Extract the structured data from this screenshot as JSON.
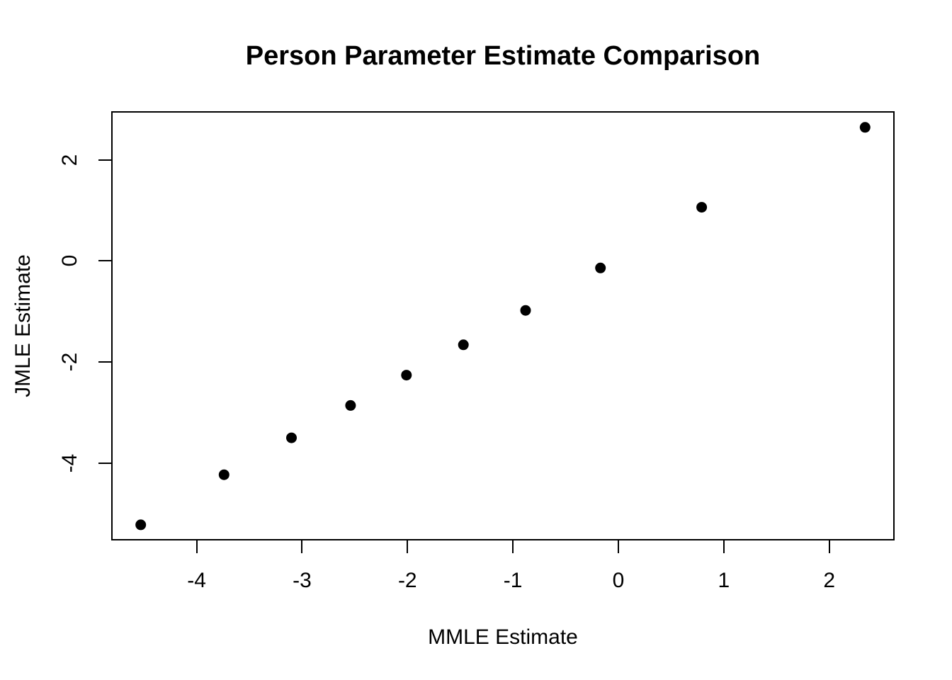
{
  "chart_data": {
    "type": "scatter",
    "title": "Person Parameter Estimate Comparison",
    "xlabel": "MMLE Estimate",
    "ylabel": "JMLE Estimate",
    "marker": "filled-circle",
    "point_color": "#000000",
    "grid": false,
    "legend": null,
    "xlim": [
      -4.81,
      2.62
    ],
    "ylim": [
      -5.53,
      2.96
    ],
    "x_ticks": [
      "-4",
      "-3",
      "-2",
      "-1",
      "0",
      "1",
      "2"
    ],
    "x_tick_values": [
      -4,
      -3,
      -2,
      -1,
      0,
      1,
      2
    ],
    "y_ticks": [
      "2",
      "0",
      "-2",
      "-4"
    ],
    "y_tick_values": [
      2,
      0,
      -2,
      -4
    ],
    "points": [
      {
        "mmle": -4.53,
        "jmle": -5.22
      },
      {
        "mmle": -3.74,
        "jmle": -4.23
      },
      {
        "mmle": -3.1,
        "jmle": -3.5
      },
      {
        "mmle": -2.54,
        "jmle": -2.86
      },
      {
        "mmle": -2.01,
        "jmle": -2.26
      },
      {
        "mmle": -1.47,
        "jmle": -1.66
      },
      {
        "mmle": -0.88,
        "jmle": -0.98
      },
      {
        "mmle": -0.17,
        "jmle": -0.14
      },
      {
        "mmle": 0.79,
        "jmle": 1.06
      },
      {
        "mmle": 2.34,
        "jmle": 2.64
      }
    ]
  }
}
